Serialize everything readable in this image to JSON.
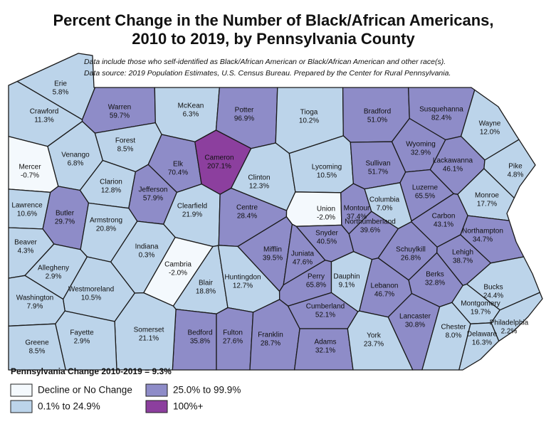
{
  "header": {
    "title": [
      "Percent Change in the Number of Black/African Americans,",
      "2010 to 2019, by Pennsylvania County"
    ],
    "notes": [
      "Data include those who self-identified as Black/African American or Black/African American and other race(s).",
      "Data source: 2019 Population Estimates, U.S. Census Bureau. Prepared by the Center for Rural Pennsylvania."
    ]
  },
  "counties": [
    {
      "name": "Erie",
      "change": "5.8%",
      "color": "#bcd4ea"
    },
    {
      "name": "Crawford",
      "change": "11.3%",
      "color": "#bcd4ea"
    },
    {
      "name": "Warren",
      "change": "59.7%",
      "color": "#8e8cc8"
    },
    {
      "name": "McKean",
      "change": "6.3%",
      "color": "#bcd4ea"
    },
    {
      "name": "Potter",
      "change": "96.9%",
      "color": "#8e8cc8"
    },
    {
      "name": "Tioga",
      "change": "10.2%",
      "color": "#bcd4ea"
    },
    {
      "name": "Bradford",
      "change": "51.0%",
      "color": "#8e8cc8"
    },
    {
      "name": "Susquehanna",
      "change": "82.4%",
      "color": "#8e8cc8"
    },
    {
      "name": "Wayne",
      "change": "12.0%",
      "color": "#bcd4ea"
    },
    {
      "name": "Forest",
      "change": "8.5%",
      "color": "#bcd4ea"
    },
    {
      "name": "Venango",
      "change": "6.8%",
      "color": "#bcd4ea"
    },
    {
      "name": "Mercer",
      "change": "-0.7%",
      "color": "#f4f9fd"
    },
    {
      "name": "Elk",
      "change": "70.4%",
      "color": "#8e8cc8"
    },
    {
      "name": "Cameron",
      "change": "207.1%",
      "color": "#8c3f9e"
    },
    {
      "name": "Clinton",
      "change": "12.3%",
      "color": "#bcd4ea"
    },
    {
      "name": "Lycoming",
      "change": "10.5%",
      "color": "#bcd4ea"
    },
    {
      "name": "Sullivan",
      "change": "51.7%",
      "color": "#8e8cc8"
    },
    {
      "name": "Wyoming",
      "change": "32.9%",
      "color": "#8e8cc8"
    },
    {
      "name": "Lackawanna",
      "change": "46.1%",
      "color": "#8e8cc8"
    },
    {
      "name": "Pike",
      "change": "4.8%",
      "color": "#bcd4ea"
    },
    {
      "name": "Clarion",
      "change": "12.8%",
      "color": "#bcd4ea"
    },
    {
      "name": "Jefferson",
      "change": "57.9%",
      "color": "#8e8cc8"
    },
    {
      "name": "Lawrence",
      "change": "10.6%",
      "color": "#bcd4ea"
    },
    {
      "name": "Butler",
      "change": "29.7%",
      "color": "#8e8cc8"
    },
    {
      "name": "Armstrong",
      "change": "20.8%",
      "color": "#bcd4ea"
    },
    {
      "name": "Clearfield",
      "change": "21.9%",
      "color": "#bcd4ea"
    },
    {
      "name": "Centre",
      "change": "28.4%",
      "color": "#8e8cc8"
    },
    {
      "name": "Union",
      "change": "-2.0%",
      "color": "#f4f9fd"
    },
    {
      "name": "Montour",
      "change": "37.4%",
      "color": "#8e8cc8"
    },
    {
      "name": "Columbia",
      "change": "7.0%",
      "color": "#bcd4ea"
    },
    {
      "name": "Luzerne",
      "change": "65.5%",
      "color": "#8e8cc8"
    },
    {
      "name": "Monroe",
      "change": "17.7%",
      "color": "#bcd4ea"
    },
    {
      "name": "Carbon",
      "change": "43.1%",
      "color": "#8e8cc8"
    },
    {
      "name": "Northumberland",
      "change": "39.6%",
      "color": "#8e8cc8"
    },
    {
      "name": "Snyder",
      "change": "40.5%",
      "color": "#8e8cc8"
    },
    {
      "name": "Beaver",
      "change": "4.3%",
      "color": "#bcd4ea"
    },
    {
      "name": "Indiana",
      "change": "0.3%",
      "color": "#bcd4ea"
    },
    {
      "name": "Mifflin",
      "change": "39.5%",
      "color": "#8e8cc8"
    },
    {
      "name": "Juniata",
      "change": "47.6%",
      "color": "#8e8cc8"
    },
    {
      "name": "Northampton",
      "change": "34.7%",
      "color": "#8e8cc8"
    },
    {
      "name": "Schuylkill",
      "change": "26.8%",
      "color": "#8e8cc8"
    },
    {
      "name": "Lehigh",
      "change": "38.7%",
      "color": "#8e8cc8"
    },
    {
      "name": "Allegheny",
      "change": "2.9%",
      "color": "#bcd4ea"
    },
    {
      "name": "Cambria",
      "change": "-2.0%",
      "color": "#f4f9fd"
    },
    {
      "name": "Blair",
      "change": "18.8%",
      "color": "#bcd4ea"
    },
    {
      "name": "Huntingdon",
      "change": "12.7%",
      "color": "#bcd4ea"
    },
    {
      "name": "Perry",
      "change": "65.8%",
      "color": "#8e8cc8"
    },
    {
      "name": "Dauphin",
      "change": "9.1%",
      "color": "#bcd4ea"
    },
    {
      "name": "Lebanon",
      "change": "46.7%",
      "color": "#8e8cc8"
    },
    {
      "name": "Berks",
      "change": "32.8%",
      "color": "#8e8cc8"
    },
    {
      "name": "Westmoreland",
      "change": "10.5%",
      "color": "#bcd4ea"
    },
    {
      "name": "Washington",
      "change": "7.9%",
      "color": "#bcd4ea"
    },
    {
      "name": "Bucks",
      "change": "24.4%",
      "color": "#bcd4ea"
    },
    {
      "name": "Montgomery",
      "change": "19.7%",
      "color": "#bcd4ea"
    },
    {
      "name": "Bedford",
      "change": "35.8%",
      "color": "#8e8cc8"
    },
    {
      "name": "Fulton",
      "change": "27.6%",
      "color": "#8e8cc8"
    },
    {
      "name": "Franklin",
      "change": "28.7%",
      "color": "#8e8cc8"
    },
    {
      "name": "Cumberland",
      "change": "52.1%",
      "color": "#8e8cc8"
    },
    {
      "name": "Adams",
      "change": "32.1%",
      "color": "#8e8cc8"
    },
    {
      "name": "York",
      "change": "23.7%",
      "color": "#bcd4ea"
    },
    {
      "name": "Lancaster",
      "change": "30.8%",
      "color": "#8e8cc8"
    },
    {
      "name": "Chester",
      "change": "8.0%",
      "color": "#bcd4ea"
    },
    {
      "name": "Delaware",
      "change": "16.3%",
      "color": "#bcd4ea"
    },
    {
      "name": "Philadelphia",
      "change": "2.2%",
      "color": "#bcd4ea"
    },
    {
      "name": "Somerset",
      "change": "21.1%",
      "color": "#bcd4ea"
    },
    {
      "name": "Fayette",
      "change": "2.9%",
      "color": "#bcd4ea"
    },
    {
      "name": "Greene",
      "change": "8.5%",
      "color": "#bcd4ea"
    }
  ],
  "legend": {
    "title": "Pennsylvania Change 2010-2019 = 9.3%",
    "items": [
      {
        "label": "Decline or No Change",
        "color": "#f4f9fd"
      },
      {
        "label": "25.0% to 99.9%",
        "color": "#8e8cc8"
      },
      {
        "label": "0.1% to 24.9%",
        "color": "#bcd4ea"
      },
      {
        "label": "100%+",
        "color": "#8c3f9e"
      }
    ]
  }
}
